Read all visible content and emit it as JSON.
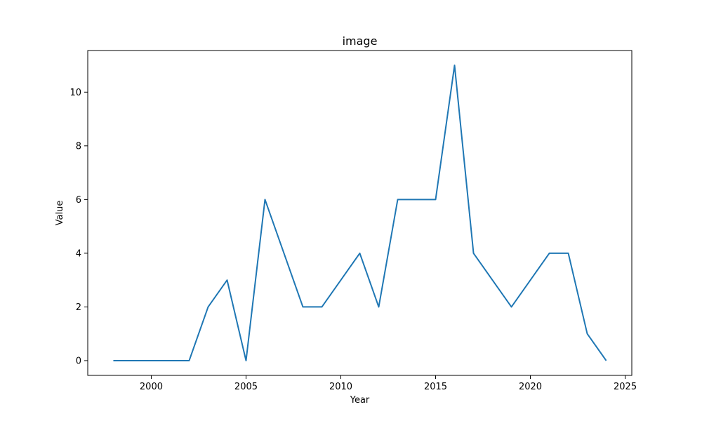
{
  "chart_data": {
    "type": "line",
    "title": "image",
    "xlabel": "Year",
    "ylabel": "Value",
    "xlim": [
      1996.65,
      2025.35
    ],
    "ylim": [
      -0.55,
      11.55
    ],
    "xticks": [
      2000,
      2005,
      2010,
      2015,
      2020,
      2025
    ],
    "yticks": [
      0,
      2,
      4,
      6,
      8,
      10
    ],
    "grid": false,
    "series": [
      {
        "color": "#1f77b4",
        "x": [
          1998,
          1999,
          2000,
          2001,
          2002,
          2003,
          2004,
          2005,
          2006,
          2007,
          2008,
          2009,
          2010,
          2011,
          2012,
          2013,
          2014,
          2015,
          2016,
          2017,
          2018,
          2019,
          2020,
          2021,
          2022,
          2023,
          2024
        ],
        "y": [
          0,
          0,
          0,
          0,
          0,
          2,
          3,
          0,
          6,
          4,
          2,
          2,
          3,
          4,
          2,
          6,
          6,
          6,
          11,
          4,
          3,
          2,
          3,
          4,
          4,
          1,
          0
        ]
      }
    ]
  }
}
